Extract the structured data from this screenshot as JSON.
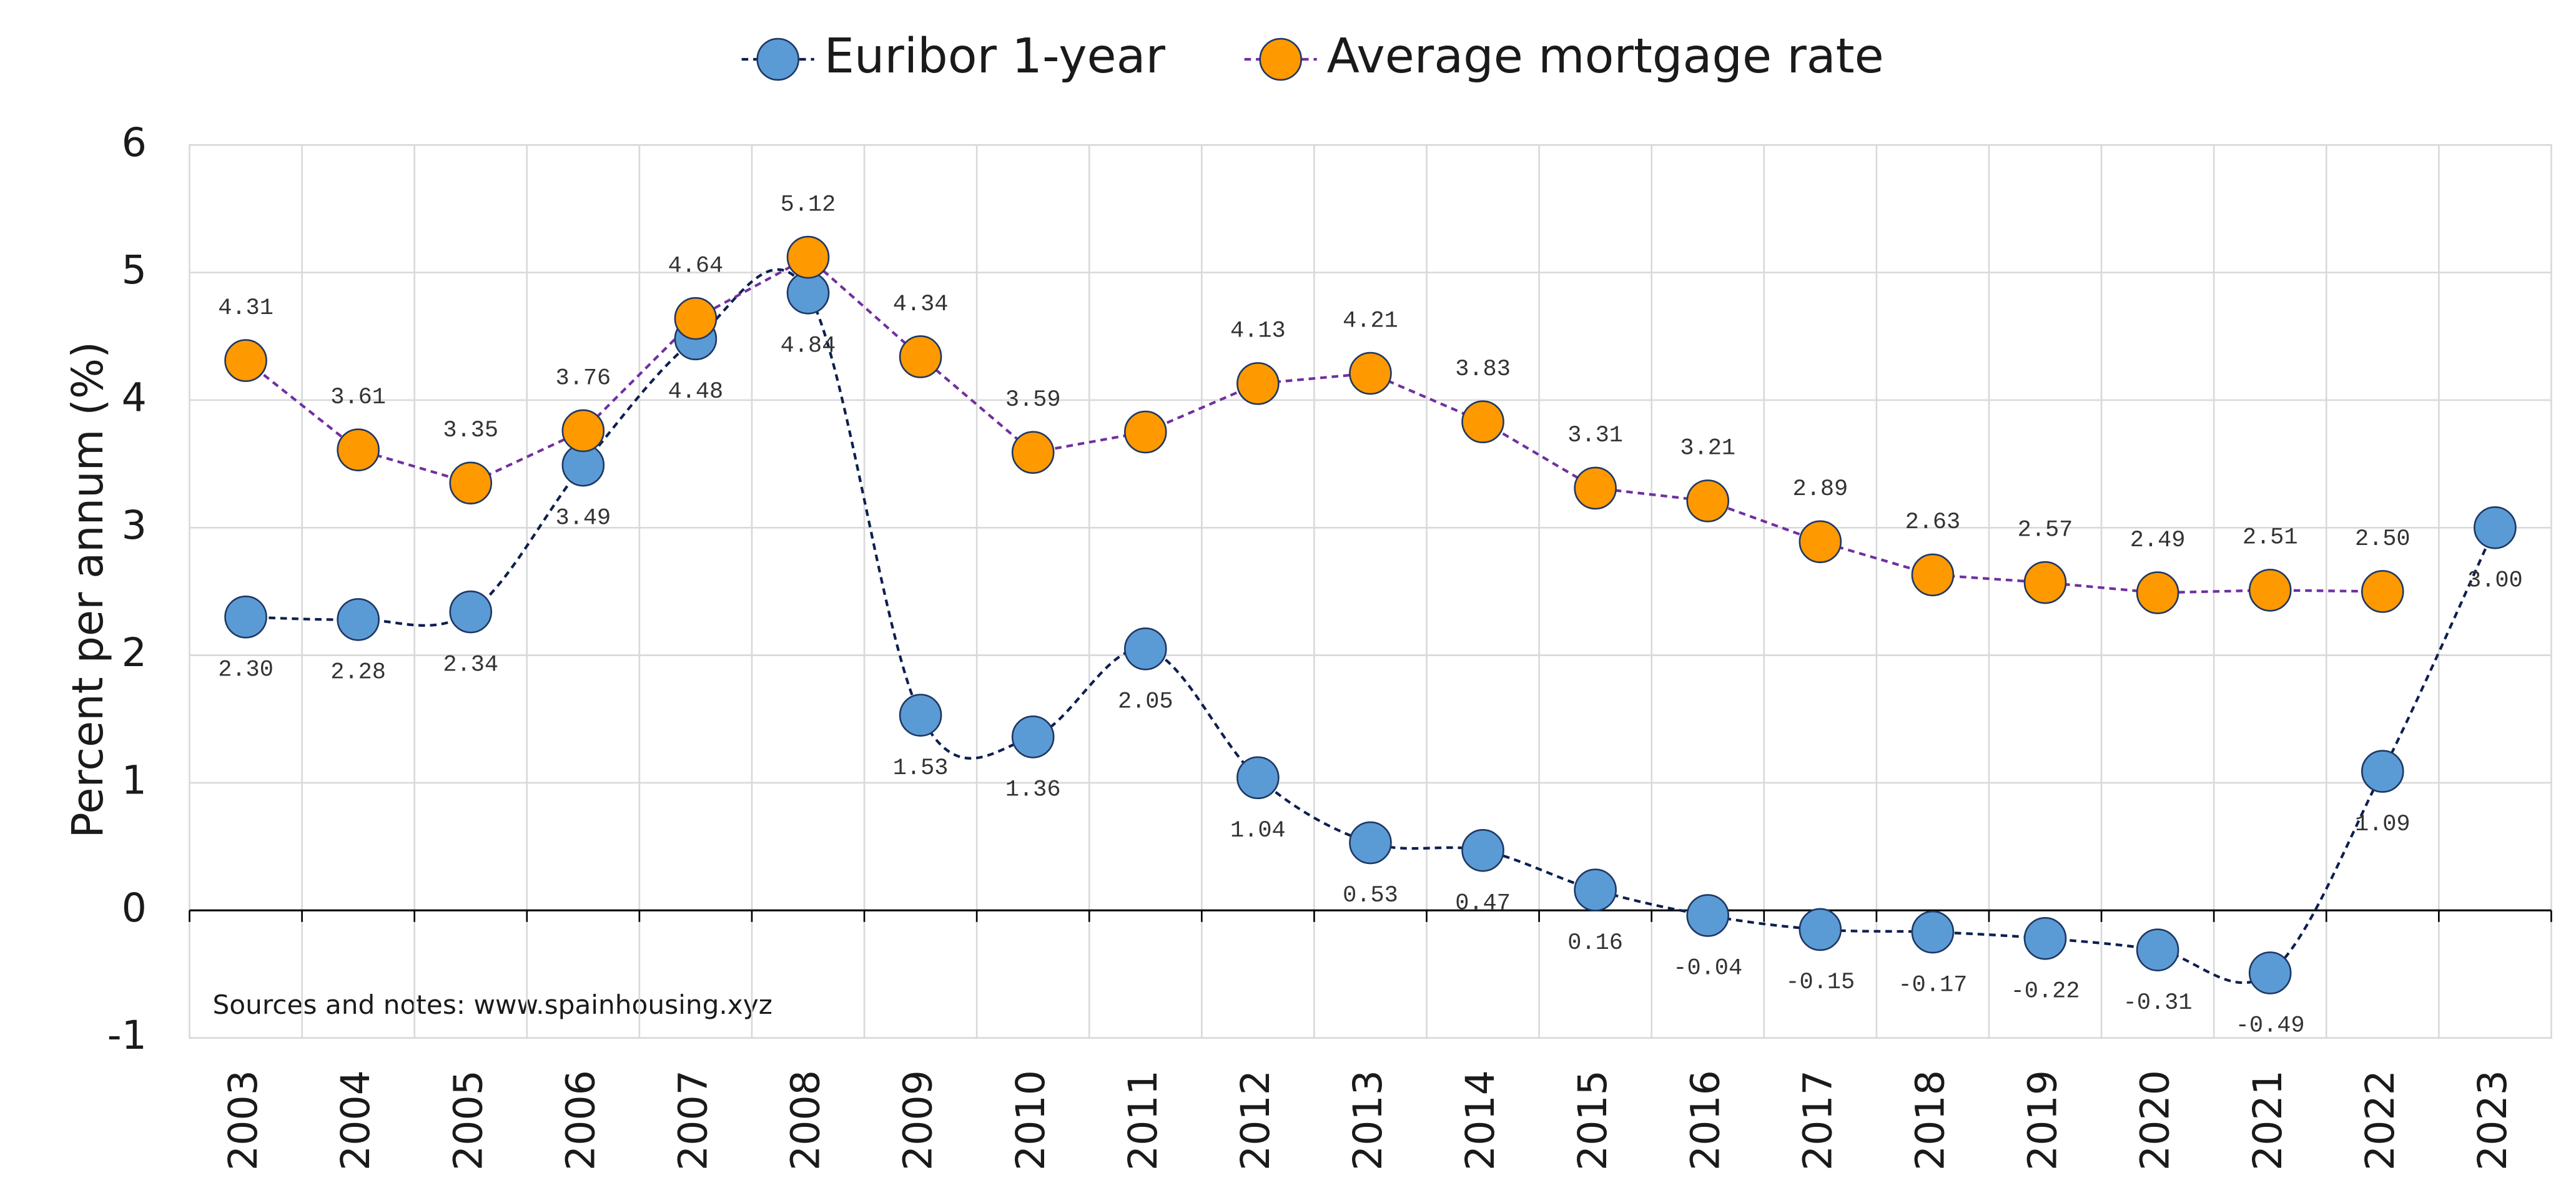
{
  "chart_data": {
    "type": "line",
    "ylabel": "Percent per annum  (%)",
    "note": "Sources and notes: www.spainhousing.xyz",
    "categories": [
      "2003",
      "2004",
      "2005",
      "2006",
      "2007",
      "2008",
      "2009",
      "2010",
      "2011",
      "2012",
      "2013",
      "2014",
      "2015",
      "2016",
      "2017",
      "2018",
      "2019",
      "2020",
      "2021",
      "2022",
      "2023"
    ],
    "series": [
      {
        "name": "Euribor 1-year",
        "color": "#5b9bd5",
        "line_color": "#0d1f4f",
        "smooth": true,
        "label_position": "below",
        "values": [
          2.3,
          2.28,
          2.34,
          3.49,
          4.48,
          4.84,
          1.53,
          1.36,
          2.05,
          1.04,
          0.53,
          0.47,
          0.16,
          -0.04,
          -0.15,
          -0.17,
          -0.22,
          -0.31,
          -0.49,
          1.09,
          3.0
        ],
        "value_labels": [
          "2.30",
          "2.28",
          "2.34",
          "3.49",
          "4.48",
          "4.84",
          "1.53",
          "1.36",
          "2.05",
          "1.04",
          "0.53",
          "0.47",
          "0.16",
          "-0.04",
          "-0.15",
          "-0.17",
          "-0.22",
          "-0.31",
          "-0.49",
          "1.09",
          "3.00"
        ]
      },
      {
        "name": "Average mortgage rate",
        "color": "#ff9900",
        "line_color": "#7030a0",
        "smooth": false,
        "label_position": "above",
        "values": [
          4.31,
          3.61,
          3.35,
          3.76,
          4.64,
          5.12,
          4.34,
          3.59,
          3.75,
          4.13,
          4.21,
          3.83,
          3.31,
          3.21,
          2.89,
          2.63,
          2.57,
          2.49,
          2.51,
          2.5,
          null
        ],
        "value_labels": [
          "4.31",
          "3.61",
          "3.35",
          "3.76",
          "4.64",
          "5.12",
          "4.34",
          "3.59",
          null,
          "4.13",
          "4.21",
          "3.83",
          "3.31",
          "3.21",
          "2.89",
          "2.63",
          "2.57",
          "2.49",
          "2.51",
          "2.50",
          null
        ]
      }
    ],
    "ylim": [
      -1,
      6
    ],
    "yticks": [
      -1,
      0,
      1,
      2,
      3,
      4,
      5,
      6
    ],
    "grid": true,
    "legend": "top"
  }
}
